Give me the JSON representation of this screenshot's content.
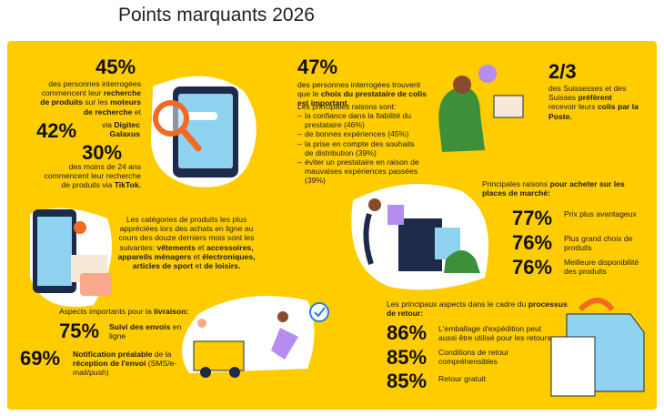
{
  "title": "Points marquants 2026",
  "search": {
    "stat1": "45%",
    "text1": [
      {
        "text": "des personnes interrogées commencent leur "
      },
      {
        "text": "recherche de produits",
        "bold": true
      },
      {
        "text": " sur les "
      },
      {
        "text": "moteurs de recherche",
        "bold": true
      },
      {
        "text": " et"
      }
    ],
    "stat2": "42%",
    "text2": [
      {
        "text": "via "
      },
      {
        "text": "Digitec Galaxus",
        "bold": true
      }
    ],
    "stat3": "30%",
    "text3": [
      {
        "text": "des moins de 24 ans commencent leur recherche de produits via "
      },
      {
        "text": "TikTok.",
        "bold": true
      }
    ]
  },
  "provider": {
    "stat": "47%",
    "text": [
      {
        "text": "des personnes interrogées trouvent que le "
      },
      {
        "text": "choix du prestataire de colis est important.",
        "bold": true
      }
    ],
    "reasons_title": "Les principales raisons sont:",
    "reasons": [
      "la confiance dans la fiabilité du prestataire (46%)",
      "de bonnes expériences (45%)",
      "la prise en compte des souhaits de distribution (39%)",
      "éviter un prestataire en raison de mauvaises expériences passées (39%)"
    ]
  },
  "post": {
    "stat": "2/3",
    "text": [
      {
        "text": "des Suissesses et des Suisses "
      },
      {
        "text": "préfèrent",
        "bold": true
      },
      {
        "text": " recevoir leurs "
      },
      {
        "text": "colis par la Poste.",
        "bold": true
      }
    ]
  },
  "categories": {
    "text": [
      {
        "text": "Les catégories de produits les plus appréciées lors des achats en ligne au cours des douze derniers mois sont les suivantes: "
      },
      {
        "text": "vêtements",
        "bold": true
      },
      {
        "text": " et "
      },
      {
        "text": "accessoires, appareils ménagers",
        "bold": true
      },
      {
        "text": " et "
      },
      {
        "text": "électroniques, articles de sport",
        "bold": true
      },
      {
        "text": " et "
      },
      {
        "text": "de loisirs.",
        "bold": true
      }
    ]
  },
  "marketplaces": {
    "title": [
      {
        "text": "Principales raisons "
      },
      {
        "text": "pour acheter sur les places de marché:",
        "bold": true
      }
    ],
    "items": [
      {
        "value": "77%",
        "label": [
          {
            "text": "Prix plus avantageux"
          }
        ]
      },
      {
        "value": "76%",
        "label": [
          {
            "text": "Plus grand choix de produits"
          }
        ]
      },
      {
        "value": "76%",
        "label": [
          {
            "text": "Meilleure disponibilité des produits"
          }
        ]
      }
    ]
  },
  "delivery": {
    "title": [
      {
        "text": "Aspects importants pour la "
      },
      {
        "text": "livraison:",
        "bold": true
      }
    ],
    "items": [
      {
        "value": "75%",
        "label": [
          {
            "text": "Suivi des envois",
            "bold": true
          },
          {
            "text": " en ligne"
          }
        ]
      },
      {
        "value": "69%",
        "label": [
          {
            "text": "Notification préalable",
            "bold": true
          },
          {
            "text": " de la "
          },
          {
            "text": "réception de l'envoi",
            "bold": true
          },
          {
            "text": " (SMS/e-mail/push)"
          }
        ]
      }
    ]
  },
  "returns": {
    "title": [
      {
        "text": "Les principaux aspects dans le cadre du "
      },
      {
        "text": "processus de retour:",
        "bold": true
      }
    ],
    "items": [
      {
        "value": "86%",
        "label": [
          {
            "text": "L'emballage d'expédition peut aussi être utilisé pour les retours"
          }
        ]
      },
      {
        "value": "85%",
        "label": [
          {
            "text": "Conditions de retour compréhensibles"
          }
        ]
      },
      {
        "value": "85%",
        "label": [
          {
            "text": "Retour gratuit"
          }
        ]
      }
    ]
  }
}
